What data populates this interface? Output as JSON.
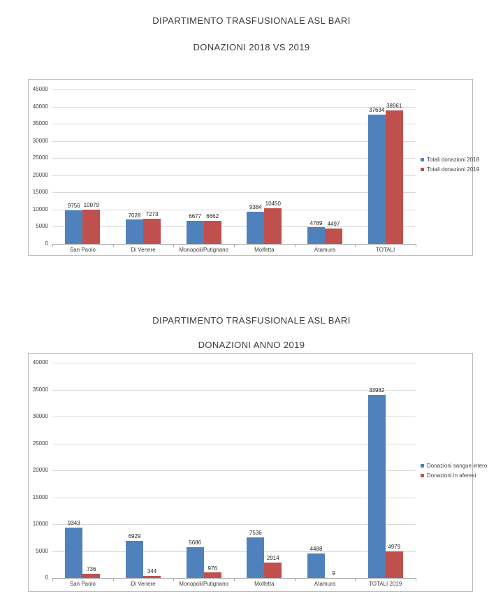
{
  "document": {
    "section1": {
      "title": "DIPARTIMENTO TRASFUSIONALE ASL BARI",
      "subtitle": "DONAZIONI 2018 VS 2019"
    },
    "section2": {
      "title": "DIPARTIMENTO TRASFUSIONALE ASL BARI",
      "subtitle": "DONAZIONI ANNO 2019"
    }
  },
  "colors": {
    "series_blue": "#4F81BD",
    "series_red": "#C0504D",
    "gridline": "#d9d9d9",
    "axis": "#a6a6a6",
    "text": "#404040"
  },
  "chart_data": [
    {
      "type": "bar",
      "title": "DIPARTIMENTO TRASFUSIONALE ASL BARI",
      "subtitle": "DONAZIONI 2018 VS 2019",
      "categories": [
        "San Paolo",
        "Di Venere",
        "Monopoli/Putignano",
        "Molfetta",
        "Atamura",
        "TOTALI"
      ],
      "series": [
        {
          "name": "Totali donazioni 2018",
          "color": "#4F81BD",
          "values": [
            9756,
            7028,
            6677,
            9384,
            4789,
            37634
          ]
        },
        {
          "name": "Totali donazioni 2019",
          "color": "#C0504D",
          "values": [
            10079,
            7273,
            6662,
            10450,
            4497,
            38961
          ]
        }
      ],
      "xlabel": "",
      "ylabel": "",
      "ylim": [
        0,
        45000
      ],
      "ytick_step": 5000,
      "grid": true,
      "legend_position": "right",
      "value_labels": true
    },
    {
      "type": "bar",
      "title": "DIPARTIMENTO TRASFUSIONALE ASL BARI",
      "subtitle": "DONAZIONI ANNO 2019",
      "categories": [
        "San Paolo",
        "Di Venere",
        "Monopoli/Putignano",
        "Molfetta",
        "Atamura",
        "TOTALI 2019"
      ],
      "series": [
        {
          "name": "Donazioni sangue intero",
          "color": "#4F81BD",
          "values": [
            9343,
            6929,
            5686,
            7536,
            4488,
            33982
          ]
        },
        {
          "name": "Donazioni in aferesi",
          "color": "#C0504D",
          "values": [
            736,
            344,
            976,
            2914,
            9,
            4979
          ]
        }
      ],
      "xlabel": "",
      "ylabel": "",
      "ylim": [
        0,
        40000
      ],
      "ytick_step": 5000,
      "grid": true,
      "legend_position": "right",
      "value_labels": true
    }
  ]
}
